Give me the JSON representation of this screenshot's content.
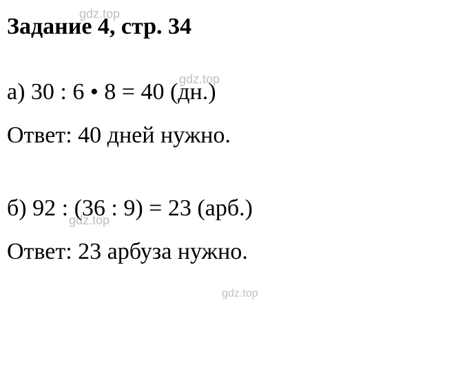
{
  "watermarks": {
    "w1": "gdz.top",
    "w2": "gdz.top",
    "w3": "gdz.top",
    "w4": "gdz.top"
  },
  "heading": "Задание 4, стр. 34",
  "section_a": {
    "equation": "а) 30 : 6 • 8 = 40 (дн.)",
    "answer": "Ответ: 40 дней нужно."
  },
  "section_b": {
    "equation": "б) 92 : (36 : 9) = 23 (арб.)",
    "answer": "Ответ: 23 арбуза нужно."
  },
  "styling": {
    "background_color": "#ffffff",
    "text_color": "#000000",
    "watermark_color": "#c0c0c0",
    "font_family": "Times New Roman",
    "heading_fontsize": 34,
    "heading_fontweight": "bold",
    "body_fontsize": 34,
    "watermark_fontsize": 18,
    "watermark_font": "Arial"
  }
}
